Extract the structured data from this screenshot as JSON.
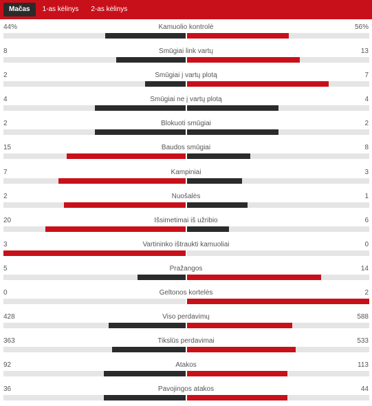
{
  "colors": {
    "header": "#c8101a",
    "leader": "#c8101a",
    "trailer": "#2b2b2b",
    "track": "#e5e5e5"
  },
  "tabs": [
    {
      "label": "Mačas",
      "active": true
    },
    {
      "label": "1-as kėlinys",
      "active": false
    },
    {
      "label": "2-as kėlinys",
      "active": false
    }
  ],
  "stats": [
    {
      "name": "Kamuolio kontrolė",
      "home": "44%",
      "away": "56%",
      "hv": 44,
      "av": 56
    },
    {
      "name": "Smūgiai link vartų",
      "home": "8",
      "away": "13",
      "hv": 8,
      "av": 13
    },
    {
      "name": "Smūgiai į vartų plotą",
      "home": "2",
      "away": "7",
      "hv": 2,
      "av": 7
    },
    {
      "name": "Smūgiai ne į vartų plotą",
      "home": "4",
      "away": "4",
      "hv": 4,
      "av": 4
    },
    {
      "name": "Blokuoti smūgiai",
      "home": "2",
      "away": "2",
      "hv": 2,
      "av": 2
    },
    {
      "name": "Baudos smūgiai",
      "home": "15",
      "away": "8",
      "hv": 15,
      "av": 8
    },
    {
      "name": "Kampiniai",
      "home": "7",
      "away": "3",
      "hv": 7,
      "av": 3
    },
    {
      "name": "Nuošalės",
      "home": "2",
      "away": "1",
      "hv": 2,
      "av": 1
    },
    {
      "name": "Išsimetimai iš užribio",
      "home": "20",
      "away": "6",
      "hv": 20,
      "av": 6
    },
    {
      "name": "Vartininko ištraukti kamuoliai",
      "home": "3",
      "away": "0",
      "hv": 3,
      "av": 0
    },
    {
      "name": "Pražangos",
      "home": "5",
      "away": "14",
      "hv": 5,
      "av": 14
    },
    {
      "name": "Geltonos kortelės",
      "home": "0",
      "away": "2",
      "hv": 0,
      "av": 2
    },
    {
      "name": "Viso perdavimų",
      "home": "428",
      "away": "588",
      "hv": 428,
      "av": 588
    },
    {
      "name": "Tikslūs perdavimai",
      "home": "363",
      "away": "533",
      "hv": 363,
      "av": 533
    },
    {
      "name": "Atakos",
      "home": "92",
      "away": "113",
      "hv": 92,
      "av": 113
    },
    {
      "name": "Pavojingos atakos",
      "home": "36",
      "away": "44",
      "hv": 36,
      "av": 44
    }
  ]
}
